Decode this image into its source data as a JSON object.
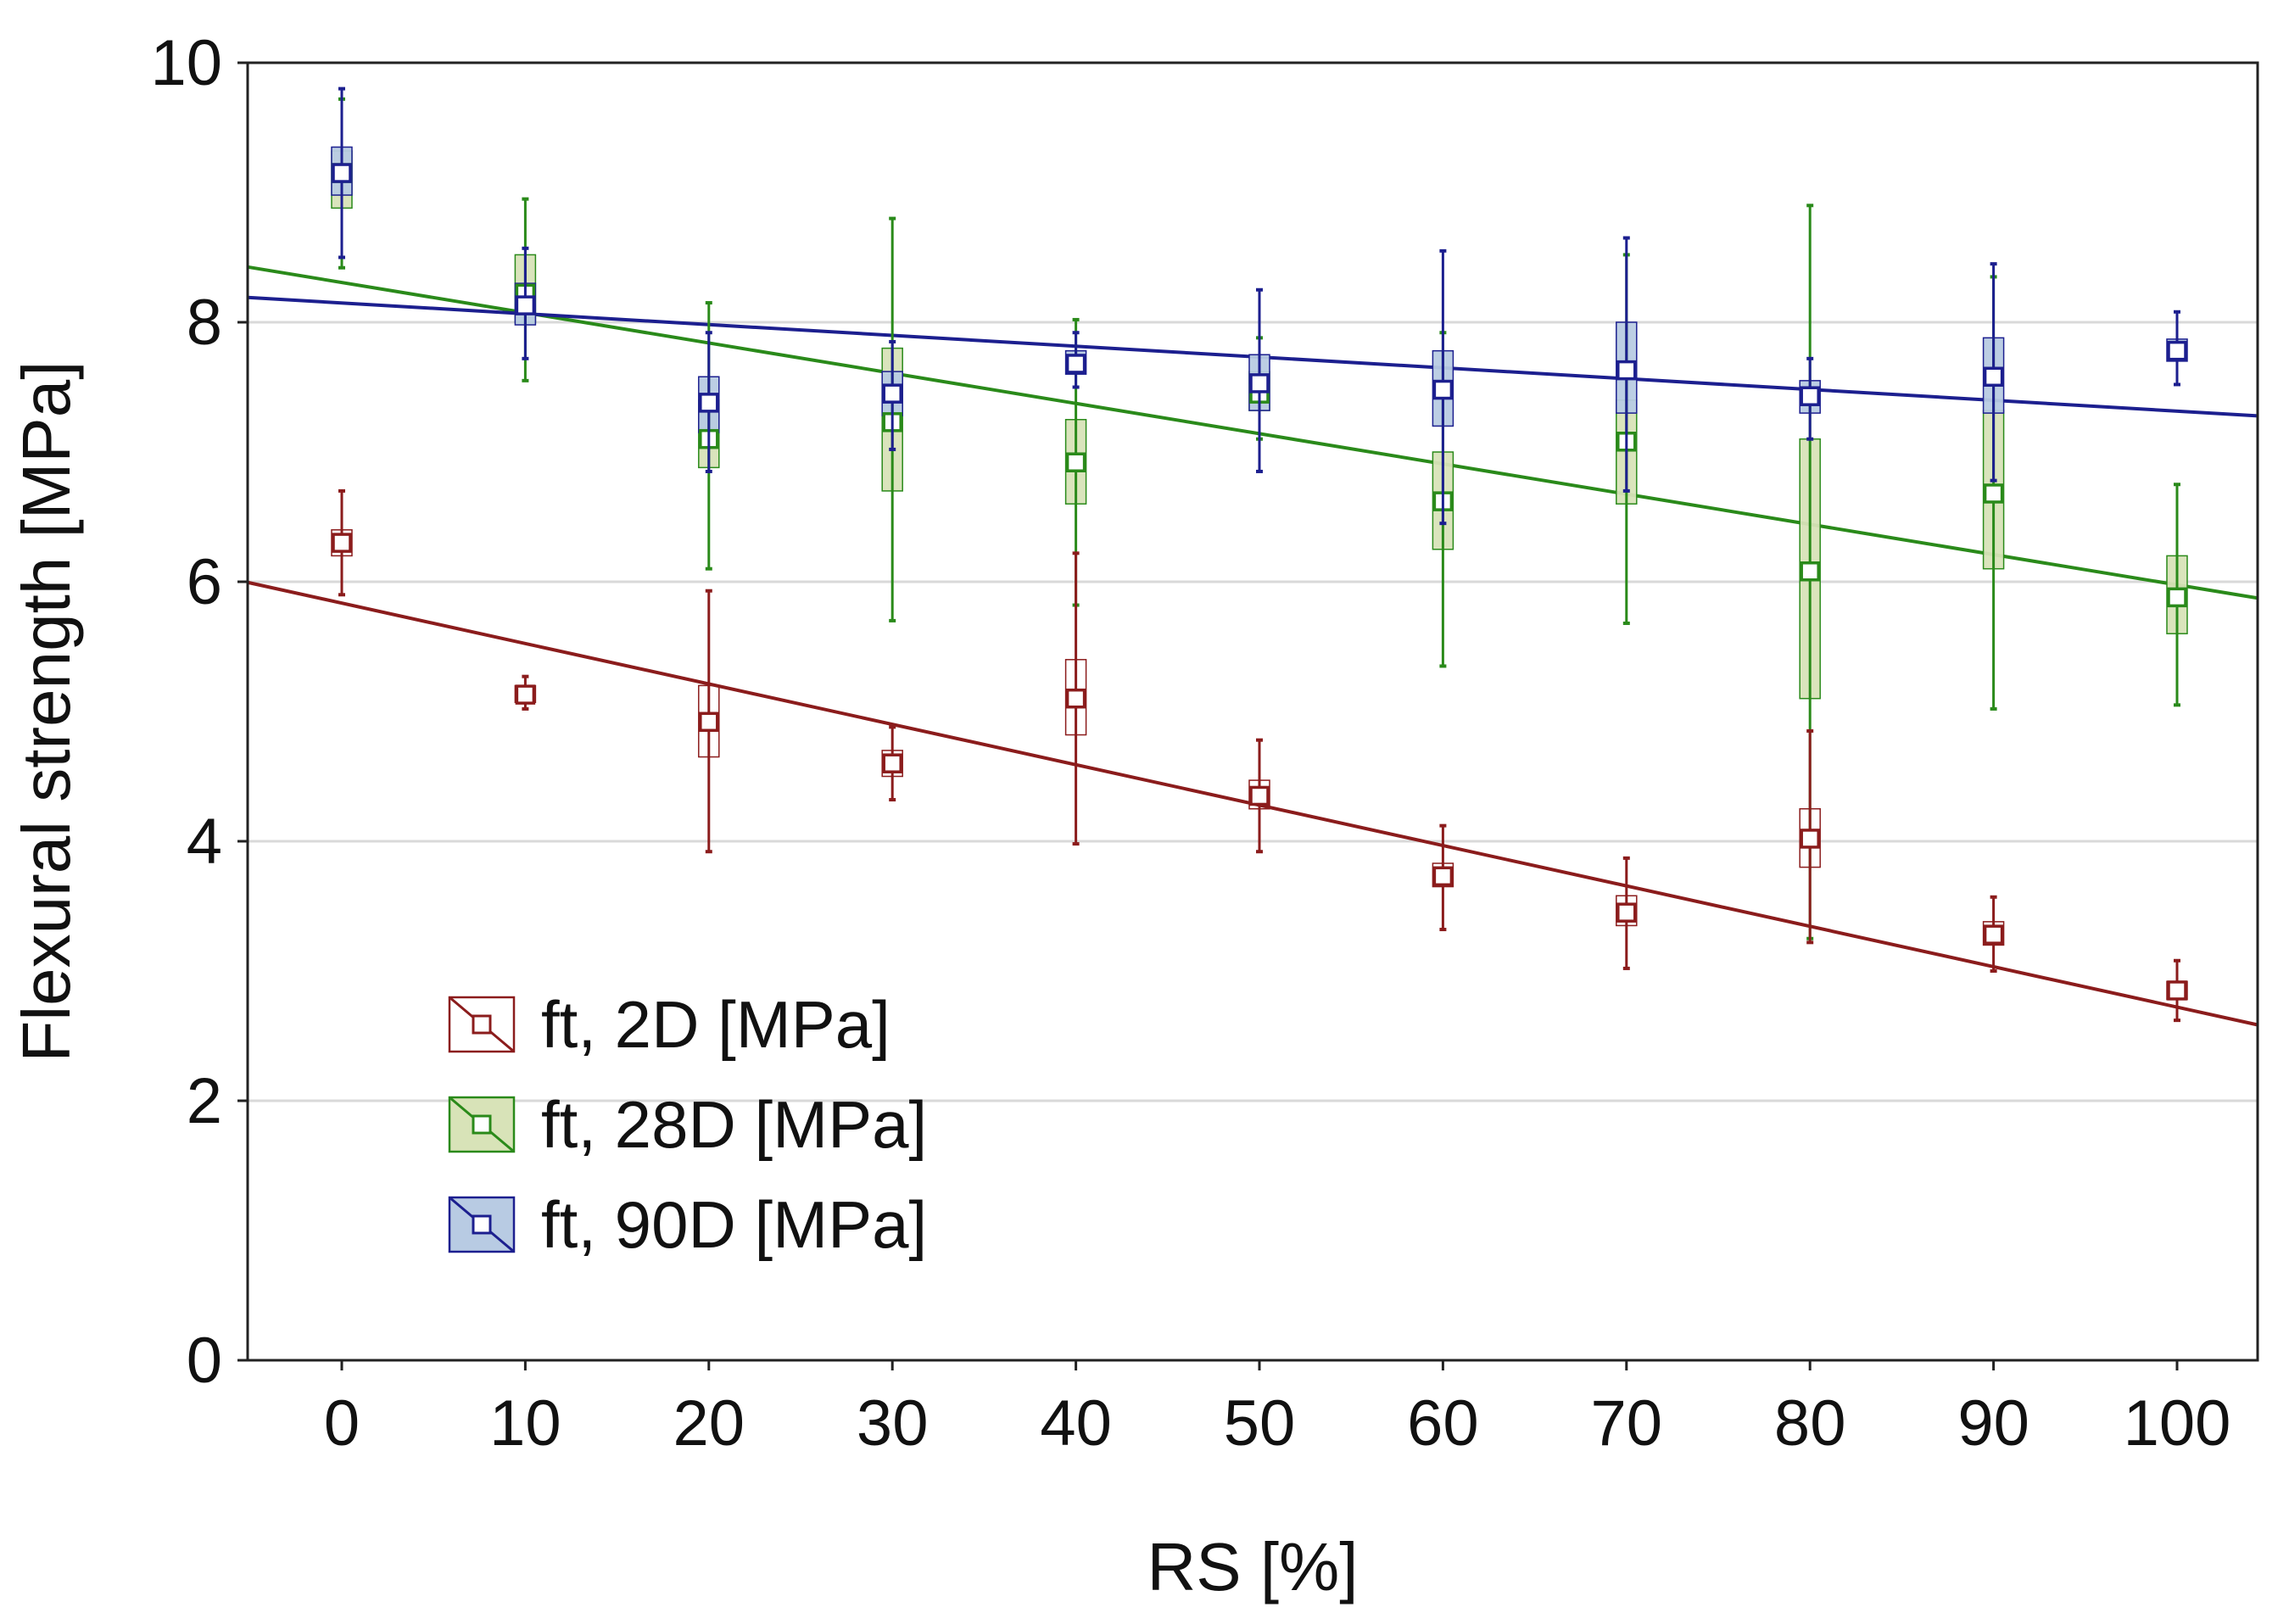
{
  "chart_data": {
    "type": "box",
    "ylabel": "Flexural strength [MPa]",
    "xlabel": "RS [%]",
    "xlim": [
      -5,
      105
    ],
    "ylim": [
      0,
      10
    ],
    "xticks": [
      0,
      10,
      20,
      30,
      40,
      50,
      60,
      70,
      80,
      90,
      100
    ],
    "yticks": [
      0,
      2,
      4,
      6,
      8,
      10
    ],
    "grid": "horizontal",
    "legend_position": "bottom-left",
    "series": [
      {
        "name": "ft, 2D [MPa]",
        "color": "#8b1c1c",
        "fill": "#ffffff",
        "fit": {
          "slope": -0.031,
          "intercept": 5.84
        },
        "points": [
          {
            "x": 0,
            "mean": 6.3,
            "box": [
              6.2,
              6.4
            ],
            "whisker": [
              5.9,
              6.7
            ]
          },
          {
            "x": 10,
            "mean": 5.13,
            "box": [
              5.07,
              5.2
            ],
            "whisker": [
              5.02,
              5.27
            ]
          },
          {
            "x": 20,
            "mean": 4.92,
            "box": [
              4.65,
              5.2
            ],
            "whisker": [
              3.92,
              5.93
            ]
          },
          {
            "x": 30,
            "mean": 4.6,
            "box": [
              4.5,
              4.7
            ],
            "whisker": [
              4.32,
              4.88
            ]
          },
          {
            "x": 40,
            "mean": 5.1,
            "box": [
              4.82,
              5.4
            ],
            "whisker": [
              3.98,
              6.22
            ]
          },
          {
            "x": 50,
            "mean": 4.35,
            "box": [
              4.25,
              4.47
            ],
            "whisker": [
              3.92,
              4.78
            ]
          },
          {
            "x": 60,
            "mean": 3.73,
            "box": [
              3.65,
              3.83
            ],
            "whisker": [
              3.32,
              4.12
            ]
          },
          {
            "x": 70,
            "mean": 3.45,
            "box": [
              3.35,
              3.58
            ],
            "whisker": [
              3.02,
              3.87
            ]
          },
          {
            "x": 80,
            "mean": 4.02,
            "box": [
              3.8,
              4.25
            ],
            "whisker": [
              3.22,
              4.85
            ]
          },
          {
            "x": 90,
            "mean": 3.28,
            "box": [
              3.2,
              3.38
            ],
            "whisker": [
              3.0,
              3.57
            ]
          },
          {
            "x": 100,
            "mean": 2.85,
            "box": [
              2.78,
              2.92
            ],
            "whisker": [
              2.62,
              3.08
            ]
          }
        ]
      },
      {
        "name": "ft, 28D [MPa]",
        "color": "#2a8a1a",
        "fill": "#d8e3b8",
        "fit": {
          "slope": -0.0232,
          "intercept": 8.31
        },
        "points": [
          {
            "x": 0,
            "mean": 9.15,
            "box": [
              8.88,
              9.32
            ],
            "whisker": [
              8.42,
              9.72
            ]
          },
          {
            "x": 10,
            "mean": 8.22,
            "box": [
              8.0,
              8.52
            ],
            "whisker": [
              7.55,
              8.95
            ]
          },
          {
            "x": 20,
            "mean": 7.1,
            "box": [
              6.88,
              7.4
            ],
            "whisker": [
              6.1,
              8.15
            ]
          },
          {
            "x": 30,
            "mean": 7.23,
            "box": [
              6.7,
              7.8
            ],
            "whisker": [
              5.7,
              8.8
            ]
          },
          {
            "x": 40,
            "mean": 6.92,
            "box": [
              6.6,
              7.25
            ],
            "whisker": [
              5.82,
              8.02
            ]
          },
          {
            "x": 50,
            "mean": 7.45,
            "box": [
              7.32,
              7.62
            ],
            "whisker": [
              7.1,
              7.88
            ]
          },
          {
            "x": 60,
            "mean": 6.62,
            "box": [
              6.25,
              7.0
            ],
            "whisker": [
              5.35,
              7.92
            ]
          },
          {
            "x": 70,
            "mean": 7.08,
            "box": [
              6.6,
              7.4
            ],
            "whisker": [
              5.68,
              8.52
            ]
          },
          {
            "x": 80,
            "mean": 6.08,
            "box": [
              5.1,
              7.1
            ],
            "whisker": [
              3.25,
              8.9
            ]
          },
          {
            "x": 90,
            "mean": 6.68,
            "box": [
              6.1,
              7.32
            ],
            "whisker": [
              5.02,
              8.35
            ]
          },
          {
            "x": 100,
            "mean": 5.88,
            "box": [
              5.6,
              6.2
            ],
            "whisker": [
              5.05,
              6.75
            ]
          }
        ]
      },
      {
        "name": "ft, 90D [MPa]",
        "color": "#1c1f8f",
        "fill": "#b8cbe3",
        "fit": {
          "slope": -0.0083,
          "intercept": 8.15
        },
        "points": [
          {
            "x": 0,
            "mean": 9.15,
            "box": [
              8.98,
              9.35
            ],
            "whisker": [
              8.5,
              9.8
            ]
          },
          {
            "x": 10,
            "mean": 8.13,
            "box": [
              7.98,
              8.3
            ],
            "whisker": [
              7.72,
              8.57
            ]
          },
          {
            "x": 20,
            "mean": 7.38,
            "box": [
              7.15,
              7.58
            ],
            "whisker": [
              6.85,
              7.92
            ]
          },
          {
            "x": 30,
            "mean": 7.45,
            "box": [
              7.28,
              7.62
            ],
            "whisker": [
              7.02,
              7.85
            ]
          },
          {
            "x": 40,
            "mean": 7.68,
            "box": [
              7.6,
              7.78
            ],
            "whisker": [
              7.5,
              7.92
            ]
          },
          {
            "x": 50,
            "mean": 7.53,
            "box": [
              7.32,
              7.75
            ],
            "whisker": [
              6.85,
              8.25
            ]
          },
          {
            "x": 60,
            "mean": 7.48,
            "box": [
              7.2,
              7.78
            ],
            "whisker": [
              6.45,
              8.55
            ]
          },
          {
            "x": 70,
            "mean": 7.63,
            "box": [
              7.3,
              8.0
            ],
            "whisker": [
              6.7,
              8.65
            ]
          },
          {
            "x": 80,
            "mean": 7.43,
            "box": [
              7.3,
              7.55
            ],
            "whisker": [
              7.1,
              7.72
            ]
          },
          {
            "x": 90,
            "mean": 7.58,
            "box": [
              7.3,
              7.88
            ],
            "whisker": [
              6.78,
              8.45
            ]
          },
          {
            "x": 100,
            "mean": 7.78,
            "box": [
              7.7,
              7.87
            ],
            "whisker": [
              7.52,
              8.08
            ]
          }
        ]
      }
    ]
  }
}
